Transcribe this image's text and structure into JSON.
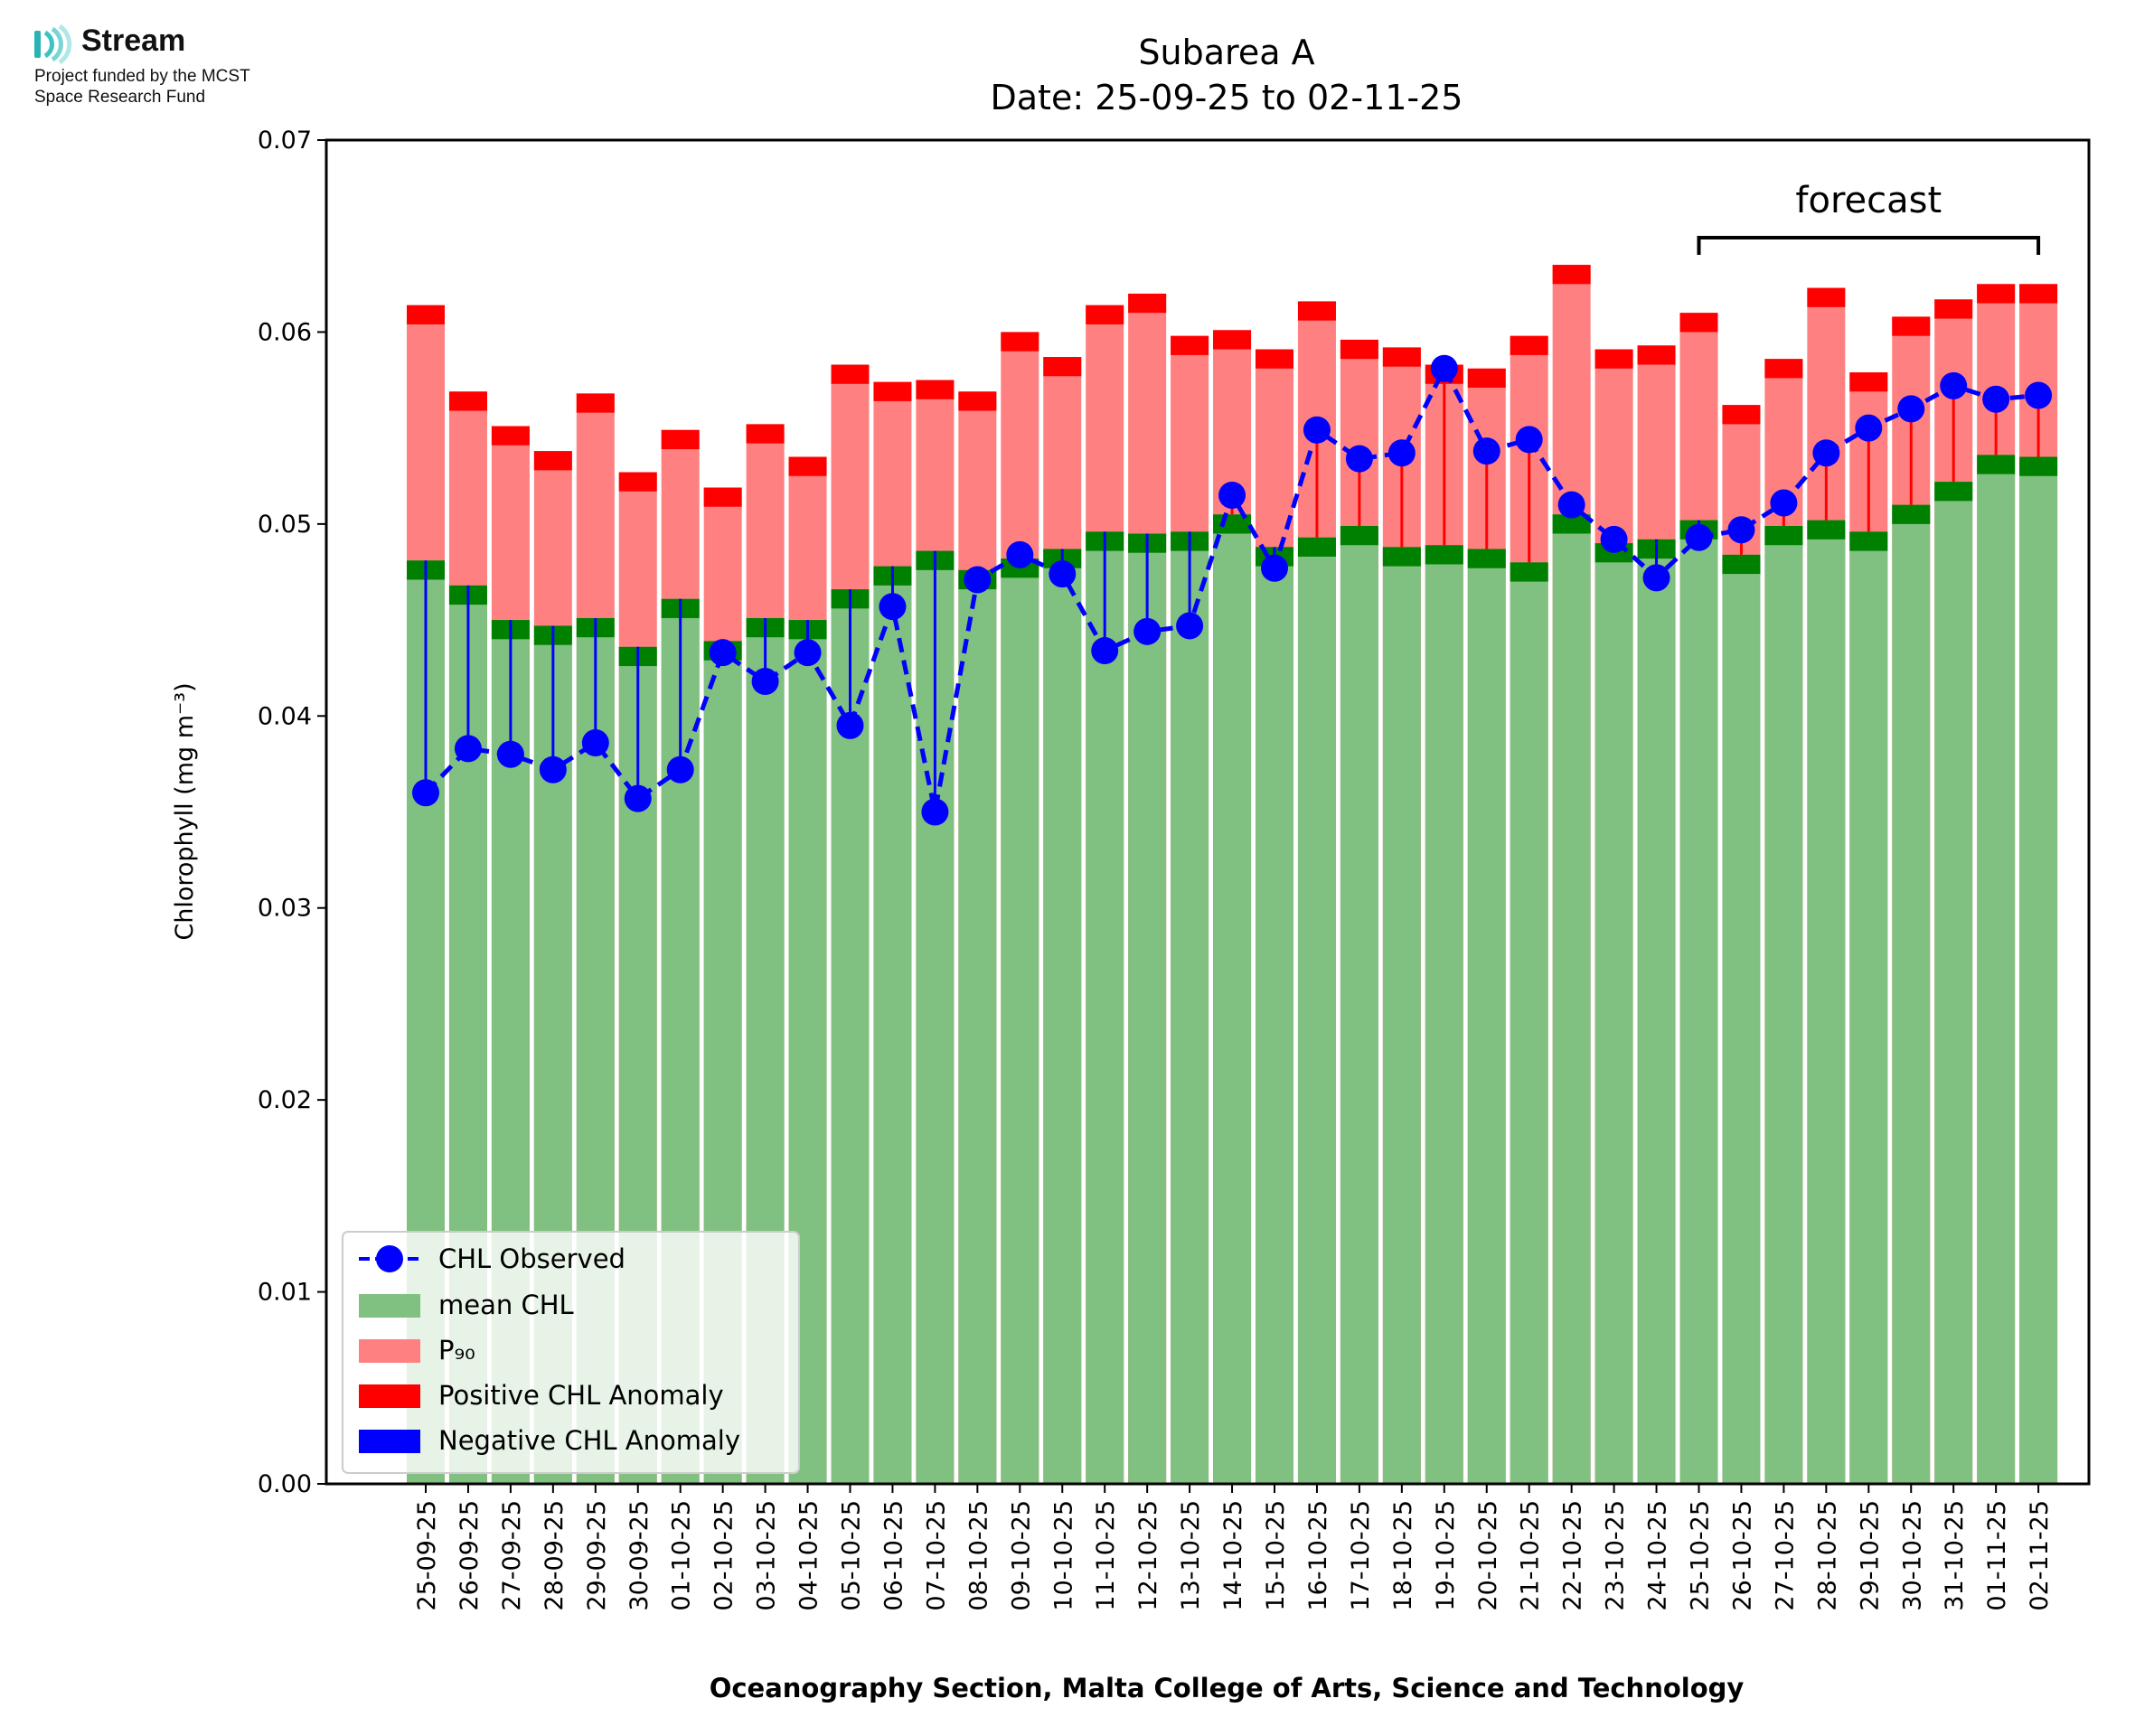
{
  "logo": {
    "name": "Stream",
    "line1": "Project funded by the MCST",
    "line2": "Space Research Fund"
  },
  "chart_data": {
    "type": "bar",
    "title": "Subarea A",
    "subtitle": "Date: 25-09-25 to 02-11-25",
    "xlabel": "Oceanography Section, Malta College of Arts, Science and Technology",
    "ylabel": "Chlorophyll (mg m⁻³)",
    "ylim": [
      0,
      0.07
    ],
    "yticks": [
      "0.00",
      "0.01",
      "0.02",
      "0.03",
      "0.04",
      "0.05",
      "0.06",
      "0.07"
    ],
    "forecast_label": "forecast",
    "forecast_start": "25-10-25",
    "forecast_end": "02-11-25",
    "categories": [
      "25-09-25",
      "26-09-25",
      "27-09-25",
      "28-09-25",
      "29-09-25",
      "30-09-25",
      "01-10-25",
      "02-10-25",
      "03-10-25",
      "04-10-25",
      "05-10-25",
      "06-10-25",
      "07-10-25",
      "08-10-25",
      "09-10-25",
      "10-10-25",
      "11-10-25",
      "12-10-25",
      "13-10-25",
      "14-10-25",
      "15-10-25",
      "16-10-25",
      "17-10-25",
      "18-10-25",
      "19-10-25",
      "20-10-25",
      "21-10-25",
      "22-10-25",
      "23-10-25",
      "24-10-25",
      "25-10-25",
      "26-10-25",
      "27-10-25",
      "28-10-25",
      "29-10-25",
      "30-10-25",
      "31-10-25",
      "01-11-25",
      "02-11-25"
    ],
    "series": [
      {
        "name": "mean CHL",
        "color": "#80c080",
        "values": [
          0.0481,
          0.0468,
          0.045,
          0.0447,
          0.0451,
          0.0436,
          0.0461,
          0.0439,
          0.0451,
          0.045,
          0.0466,
          0.0478,
          0.0486,
          0.0476,
          0.0482,
          0.0487,
          0.0496,
          0.0495,
          0.0496,
          0.0505,
          0.0488,
          0.0493,
          0.0499,
          0.0488,
          0.0489,
          0.0487,
          0.048,
          0.0505,
          0.049,
          0.0492,
          0.0502,
          0.0484,
          0.0499,
          0.0502,
          0.0496,
          0.051,
          0.0522,
          0.0536,
          0.0535
        ]
      },
      {
        "name": "P₉₀",
        "color": "#ff8080",
        "values": [
          0.0614,
          0.0569,
          0.0551,
          0.0538,
          0.0568,
          0.0527,
          0.0549,
          0.0519,
          0.0552,
          0.0535,
          0.0583,
          0.0574,
          0.0575,
          0.0569,
          0.06,
          0.0587,
          0.0614,
          0.062,
          0.0598,
          0.0601,
          0.0591,
          0.0616,
          0.0596,
          0.0592,
          0.0583,
          0.0581,
          0.0598,
          0.0635,
          0.0591,
          0.0593,
          0.061,
          0.0562,
          0.0586,
          0.0623,
          0.0579,
          0.0608,
          0.0617,
          0.0625,
          0.0625
        ]
      },
      {
        "name": "CHL Observed",
        "color": "#0000ff",
        "values": [
          0.036,
          0.0383,
          0.038,
          0.0372,
          0.0386,
          0.0357,
          0.0372,
          0.0433,
          0.0418,
          0.0433,
          0.0395,
          0.0457,
          0.035,
          0.0471,
          0.0484,
          0.0474,
          0.0434,
          0.0444,
          0.0447,
          0.0515,
          0.0477,
          0.0549,
          0.0534,
          0.0537,
          0.0581,
          0.0538,
          0.0544,
          0.051,
          0.0492,
          0.0472,
          0.0493,
          0.0497,
          0.0511,
          0.0537,
          0.055,
          0.056,
          0.0572,
          0.0565,
          0.0567
        ]
      }
    ],
    "legend": {
      "placement": "lower-left",
      "entries": [
        "CHL Observed",
        "mean CHL",
        "P₉₀",
        "Positive CHL Anomaly",
        "Negative CHL Anomaly"
      ]
    },
    "colors": {
      "mean": "#80c080",
      "mean_band": "#008000",
      "p90": "#ff8080",
      "p90_band": "#ff0000",
      "observed": "#0000ff",
      "positive_anomaly": "#ff0000",
      "negative_anomaly": "#0000ff"
    }
  }
}
